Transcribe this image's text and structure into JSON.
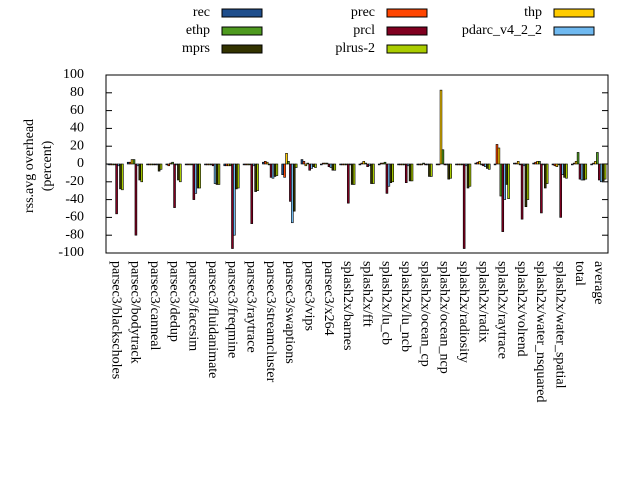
{
  "chart_data": {
    "type": "bar",
    "ylabel": [
      "rss.avg overhead",
      "(percent)"
    ],
    "categories": [
      "parsec3/blackscholes",
      "parsec3/bodytrack",
      "parsec3/canneal",
      "parsec3/dedup",
      "parsec3/facesim",
      "parsec3/fluidanimate",
      "parsec3/freqmine",
      "parsec3/raytrace",
      "parsec3/streamcluster",
      "parsec3/swaptions",
      "parsec3/vips",
      "parsec3/x264",
      "splash2x/barnes",
      "splash2x/fft",
      "splash2x/lu_cb",
      "splash2x/lu_ncb",
      "splash2x/ocean_cp",
      "splash2x/ocean_ncp",
      "splash2x/radiosity",
      "splash2x/radix",
      "splash2x/raytrace",
      "splash2x/volrend",
      "splash2x/water_nsquared",
      "splash2x/water_spatial",
      "total",
      "average"
    ],
    "series": [
      {
        "name": "rec",
        "color": "#1f4e8c",
        "values": [
          -1,
          2,
          -1,
          -1,
          -1,
          -1,
          -2,
          -1,
          2,
          -12,
          5,
          -1,
          -1,
          -1,
          -1,
          -1,
          -1,
          -1,
          -1,
          1,
          -1,
          1,
          1,
          -1,
          -1,
          -1
        ]
      },
      {
        "name": "prec",
        "color": "#ff4500",
        "values": [
          -1,
          2,
          -1,
          -2,
          -1,
          -1,
          -2,
          -1,
          3,
          -15,
          3,
          1,
          -1,
          1,
          1,
          -1,
          -1,
          -1,
          -1,
          2,
          22,
          1,
          2,
          -2,
          1,
          1
        ]
      },
      {
        "name": "thp",
        "color": "#ffcc00",
        "values": [
          -1,
          5,
          -1,
          1,
          -1,
          -1,
          -2,
          -1,
          2,
          12,
          -2,
          1,
          -1,
          3,
          1,
          -1,
          -1,
          83,
          -1,
          3,
          18,
          3,
          3,
          -3,
          3,
          3
        ]
      },
      {
        "name": "ethp",
        "color": "#4e9a1f",
        "values": [
          -1,
          5,
          -1,
          2,
          -1,
          -1,
          -2,
          -1,
          -1,
          3,
          1,
          1,
          -1,
          1,
          2,
          -1,
          1,
          16,
          -1,
          -1,
          -36,
          -1,
          3,
          -1,
          13,
          13
        ]
      },
      {
        "name": "prcl",
        "color": "#800020",
        "values": [
          -56,
          -80,
          -1,
          -49,
          -40,
          -2,
          -95,
          -67,
          -15,
          -42,
          -7,
          -3,
          -44,
          -3,
          -33,
          -21,
          -1,
          -1,
          -95,
          -2,
          -76,
          -62,
          -55,
          -60,
          -17,
          -18
        ]
      },
      {
        "name": "pdarc_v4_2_2",
        "color": "#6fb9f0",
        "values": [
          -2,
          -2,
          -1,
          -1,
          -33,
          -22,
          -80,
          -2,
          -16,
          -66,
          -5,
          -4,
          -1,
          -2,
          -25,
          -2,
          -1,
          -1,
          -2,
          -3,
          -40,
          -2,
          -1,
          -12,
          -18,
          -20
        ]
      },
      {
        "name": "mprs",
        "color": "#333300",
        "values": [
          -28,
          -18,
          -8,
          -18,
          -27,
          -23,
          -28,
          -31,
          -14,
          -53,
          -3,
          -7,
          -23,
          -22,
          -21,
          -19,
          -14,
          -17,
          -27,
          -5,
          -23,
          -48,
          -27,
          -15,
          -18,
          -19
        ]
      },
      {
        "name": "plrus-2",
        "color": "#aacc00",
        "values": [
          -29,
          -20,
          -6,
          -20,
          -27,
          -23,
          -27,
          -30,
          -13,
          -4,
          -4,
          -7,
          -23,
          -22,
          -20,
          -19,
          -14,
          -16,
          -25,
          -6,
          -39,
          -40,
          -22,
          -16,
          -17,
          -17
        ]
      }
    ],
    "ylim": [
      -100,
      100
    ],
    "yticks": [
      -100,
      -80,
      -60,
      -40,
      -20,
      0,
      20,
      40,
      60,
      80,
      100
    ]
  }
}
